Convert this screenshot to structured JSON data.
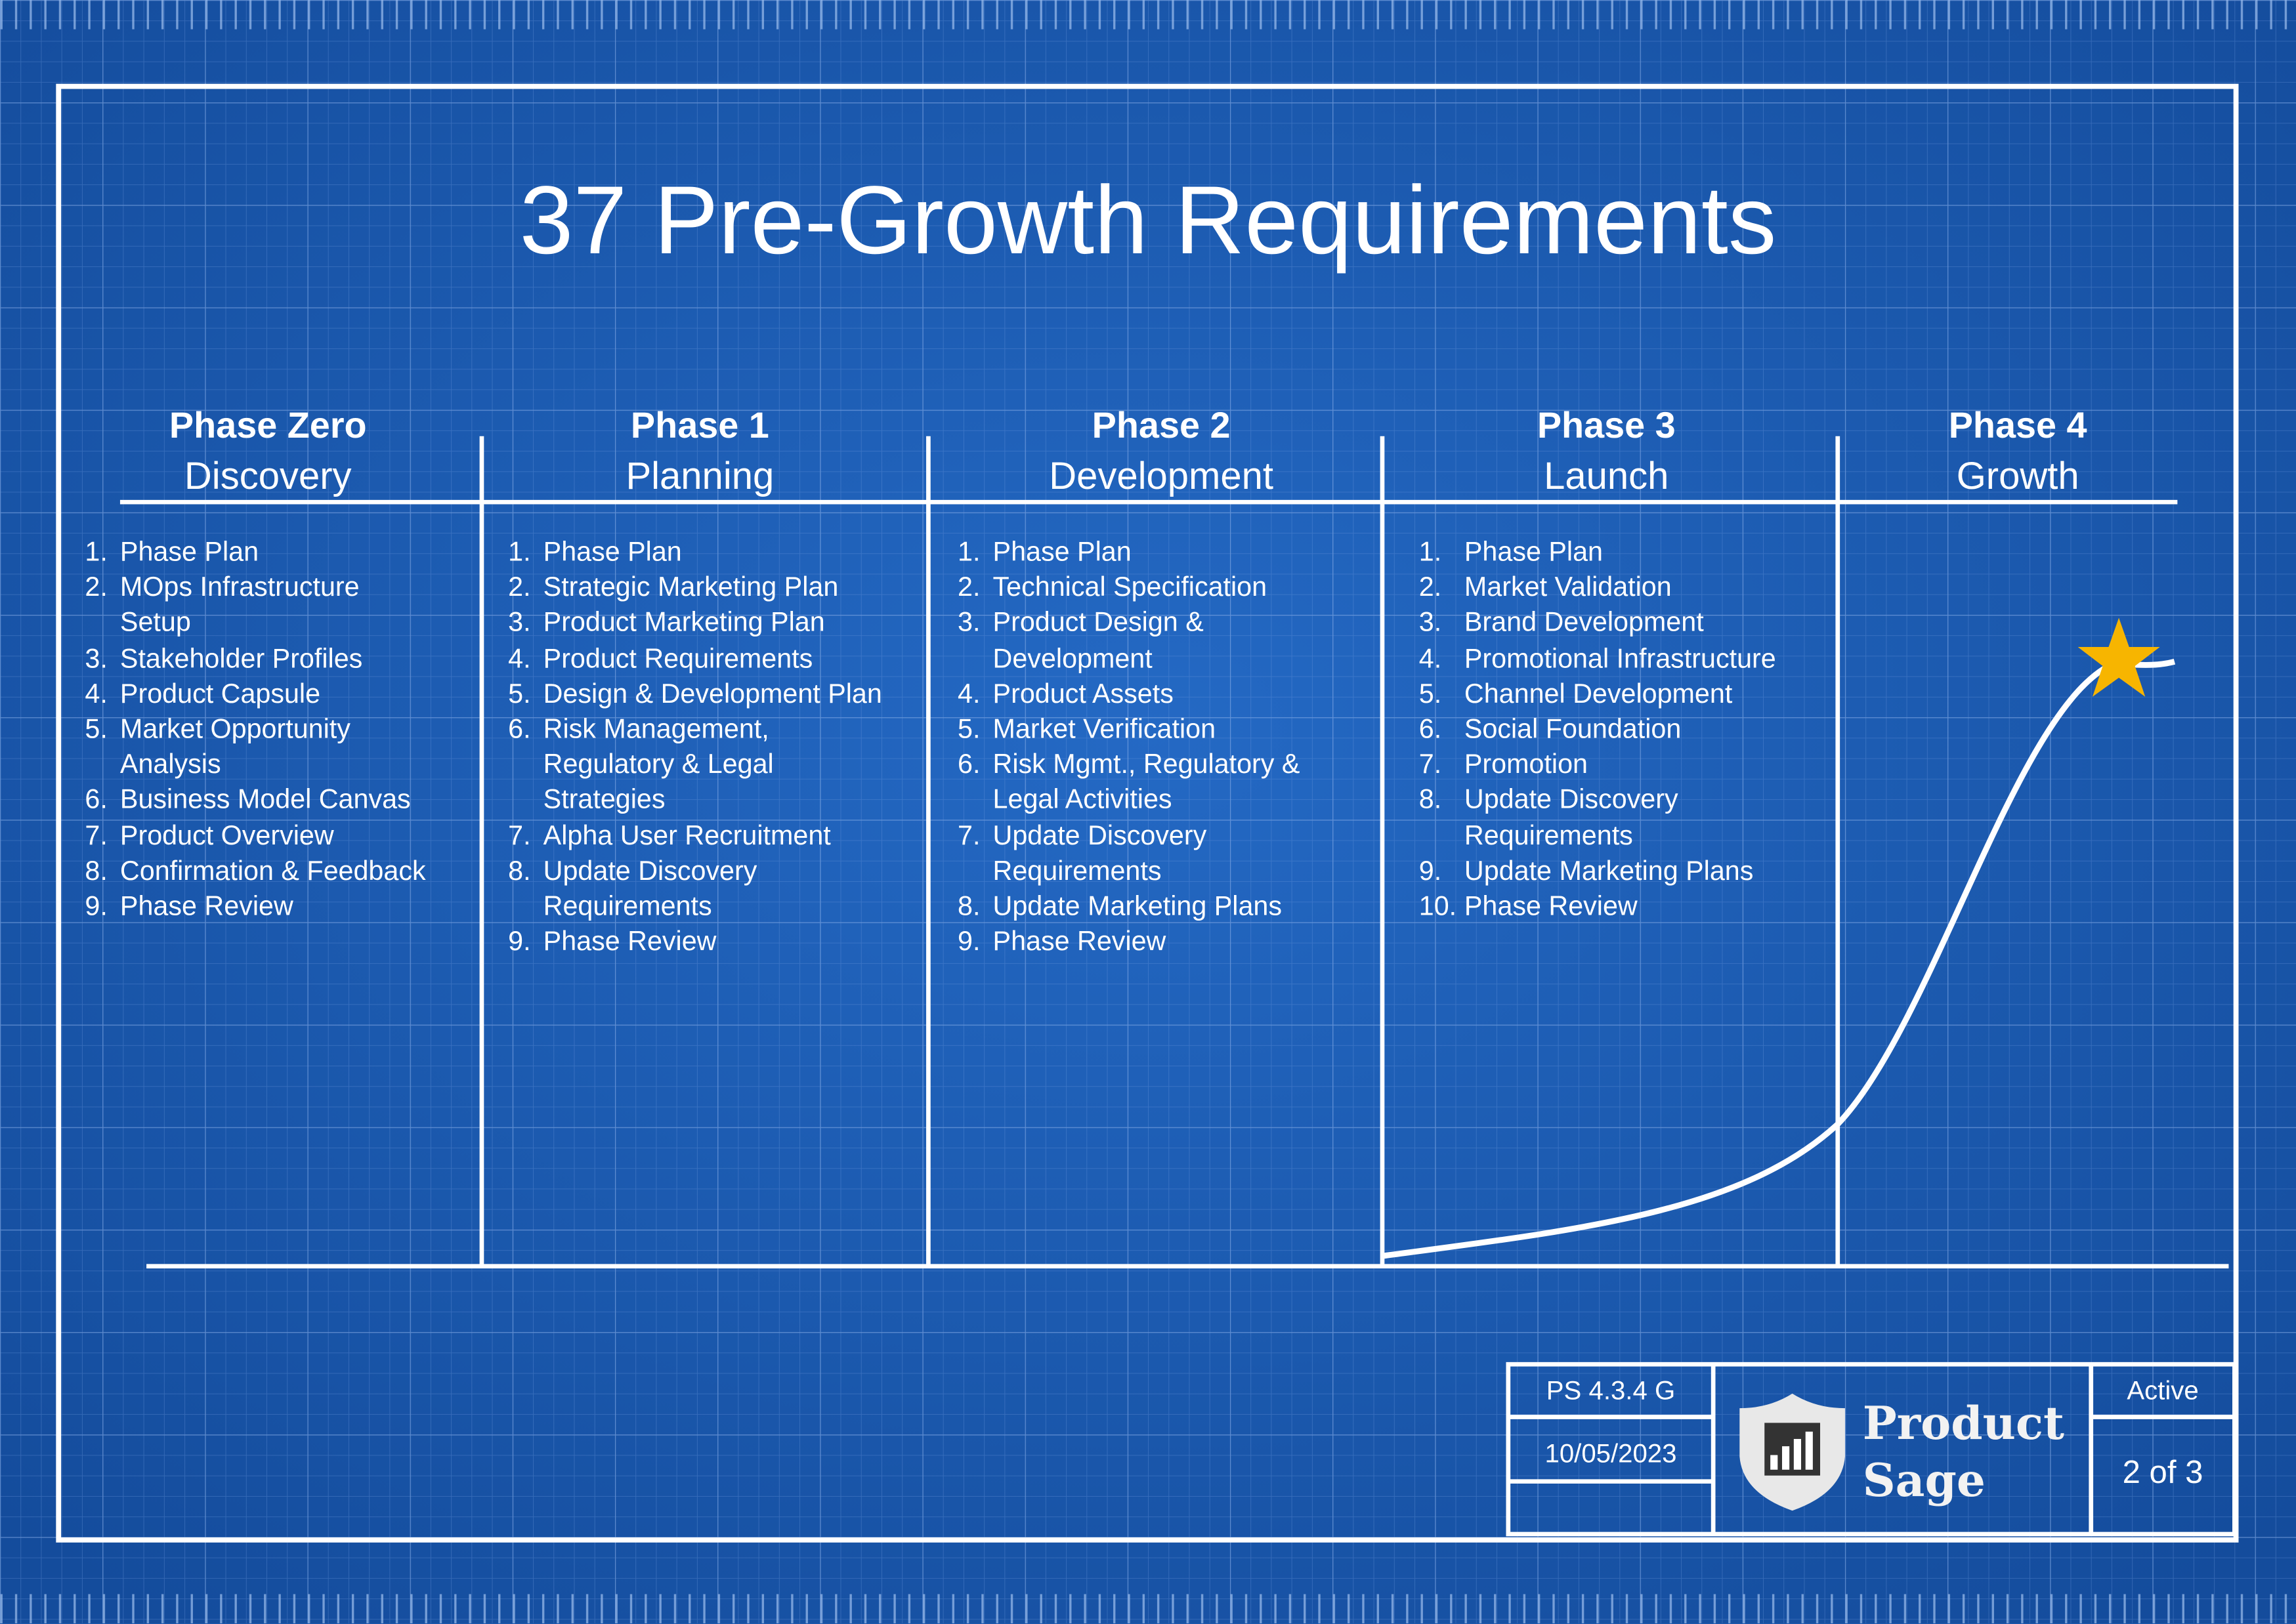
{
  "title": "37 Pre-Growth Requirements",
  "phases": [
    {
      "name": "Phase Zero",
      "subtitle": "Discovery",
      "items": [
        {
          "num": "1.",
          "lines": [
            "Phase Plan"
          ]
        },
        {
          "num": "2.",
          "lines": [
            "MOps Infrastructure",
            "Setup"
          ]
        },
        {
          "num": "3.",
          "lines": [
            "Stakeholder Profiles"
          ]
        },
        {
          "num": "4.",
          "lines": [
            "Product Capsule"
          ]
        },
        {
          "num": "5.",
          "lines": [
            "Market Opportunity",
            "Analysis"
          ]
        },
        {
          "num": "6.",
          "lines": [
            "Business Model Canvas"
          ]
        },
        {
          "num": "7.",
          "lines": [
            "Product Overview"
          ]
        },
        {
          "num": "8.",
          "lines": [
            "Confirmation & Feedback"
          ]
        },
        {
          "num": "9.",
          "lines": [
            "Phase Review"
          ]
        }
      ]
    },
    {
      "name": "Phase 1",
      "subtitle": "Planning",
      "items": [
        {
          "num": "1.",
          "lines": [
            "Phase Plan"
          ]
        },
        {
          "num": "2.",
          "lines": [
            "Strategic Marketing Plan"
          ]
        },
        {
          "num": "3.",
          "lines": [
            "Product Marketing Plan"
          ]
        },
        {
          "num": "4.",
          "lines": [
            "Product Requirements"
          ]
        },
        {
          "num": "5.",
          "lines": [
            "Design & Development Plan"
          ]
        },
        {
          "num": "6.",
          "lines": [
            "Risk Management,",
            "Regulatory & Legal",
            "Strategies"
          ]
        },
        {
          "num": "7.",
          "lines": [
            "Alpha User Recruitment"
          ]
        },
        {
          "num": "8.",
          "lines": [
            "Update Discovery",
            "Requirements"
          ]
        },
        {
          "num": "9.",
          "lines": [
            "Phase Review"
          ]
        }
      ]
    },
    {
      "name": "Phase 2",
      "subtitle": "Development",
      "items": [
        {
          "num": "1.",
          "lines": [
            "Phase Plan"
          ]
        },
        {
          "num": "2.",
          "lines": [
            "Technical Specification"
          ]
        },
        {
          "num": "3.",
          "lines": [
            "Product Design &",
            "Development"
          ]
        },
        {
          "num": "4.",
          "lines": [
            "Product Assets"
          ]
        },
        {
          "num": "5.",
          "lines": [
            "Market Verification"
          ]
        },
        {
          "num": "6.",
          "lines": [
            "Risk Mgmt., Regulatory &",
            "Legal Activities"
          ]
        },
        {
          "num": "7.",
          "lines": [
            "Update Discovery",
            "Requirements"
          ]
        },
        {
          "num": "8.",
          "lines": [
            "Update Marketing Plans"
          ]
        },
        {
          "num": "9.",
          "lines": [
            "Phase Review"
          ]
        }
      ]
    },
    {
      "name": "Phase 3",
      "subtitle": "Launch",
      "items": [
        {
          "num": "1.",
          "lines": [
            "Phase Plan"
          ]
        },
        {
          "num": "2.",
          "lines": [
            "Market Validation"
          ]
        },
        {
          "num": "3.",
          "lines": [
            "Brand Development"
          ]
        },
        {
          "num": "4.",
          "lines": [
            "Promotional Infrastructure"
          ]
        },
        {
          "num": "5.",
          "lines": [
            "Channel Development"
          ]
        },
        {
          "num": "6.",
          "lines": [
            "Social Foundation"
          ]
        },
        {
          "num": "7.",
          "lines": [
            "Promotion"
          ]
        },
        {
          "num": "8.",
          "lines": [
            "Update Discovery",
            "Requirements"
          ]
        },
        {
          "num": "9.",
          "lines": [
            "Update Marketing Plans"
          ]
        },
        {
          "num": "10.",
          "lines": [
            "Phase Review"
          ]
        }
      ]
    },
    {
      "name": "Phase 4",
      "subtitle": "Growth",
      "items": []
    }
  ],
  "footer": {
    "code": "PS 4.3.4 G",
    "date": "10/05/2023",
    "brand": [
      "Product",
      "Sage"
    ],
    "status": "Active",
    "page": "2 of 3"
  }
}
